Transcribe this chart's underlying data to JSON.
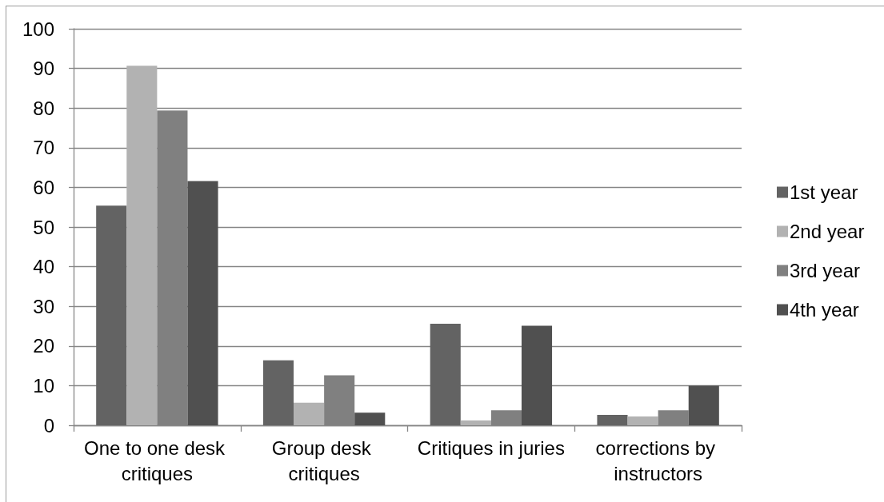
{
  "chart_data": {
    "type": "bar",
    "categories": [
      "One to one desk critiques",
      "Group desk critiques",
      "Critiques in juries",
      "corrections by instructors"
    ],
    "series": [
      {
        "name": "1st year",
        "color": "#636363",
        "values": [
          55.4,
          16.4,
          25.6,
          2.6
        ]
      },
      {
        "name": "2nd year",
        "color": "#b2b2b2",
        "values": [
          90.7,
          5.7,
          1.2,
          2.2
        ]
      },
      {
        "name": "3rd year",
        "color": "#808080",
        "values": [
          79.4,
          12.6,
          3.8,
          3.8
        ]
      },
      {
        "name": "4th year",
        "color": "#505050",
        "values": [
          61.6,
          3.2,
          25.1,
          10.0
        ]
      }
    ],
    "ylim": [
      0,
      100
    ],
    "yticks": [
      0,
      10,
      20,
      30,
      40,
      50,
      60,
      70,
      80,
      90,
      100
    ],
    "grid": "y",
    "legend": "right"
  }
}
